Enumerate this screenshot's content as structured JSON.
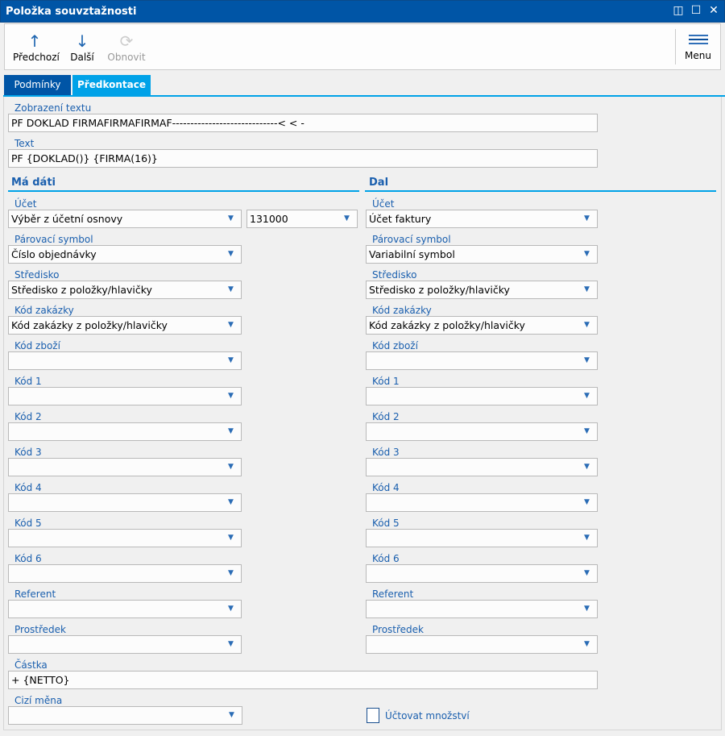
{
  "window": {
    "title": "Položka souvztažnosti"
  },
  "toolbar": {
    "prev": "Předchozí",
    "next": "Další",
    "refresh": "Obnovit",
    "menu": "Menu"
  },
  "tabs": [
    {
      "label": "Podmínky",
      "active": false
    },
    {
      "label": "Předkontace",
      "active": true
    }
  ],
  "fields": {
    "display_text": {
      "label": "Zobrazení textu",
      "value": "PF DOKLAD FIRMAFIRMAFIRMAF-----------------------------< < -"
    },
    "text": {
      "label": "Text",
      "value": "PF {DOKLAD()} {FIRMA(16)}"
    },
    "amount": {
      "label": "Částka",
      "value": "+ {NETTO}"
    },
    "foreign_currency": {
      "label": "Cizí měna",
      "value": ""
    },
    "count_quantity": {
      "label": "Účtovat množství",
      "checked": false
    }
  },
  "debit": {
    "title": "Má dáti",
    "account_number": "131000",
    "rows": [
      {
        "label": "Účet",
        "value": "Výběr z účetní osnovy"
      },
      {
        "label": "Párovací symbol",
        "value": "Číslo objednávky"
      },
      {
        "label": "Středisko",
        "value": "Středisko z položky/hlavičky"
      },
      {
        "label": "Kód zakázky",
        "value": "Kód zakázky z položky/hlavičky"
      },
      {
        "label": "Kód zboží",
        "value": ""
      },
      {
        "label": "Kód 1",
        "value": ""
      },
      {
        "label": "Kód 2",
        "value": ""
      },
      {
        "label": "Kód 3",
        "value": ""
      },
      {
        "label": "Kód 4",
        "value": ""
      },
      {
        "label": "Kód 5",
        "value": ""
      },
      {
        "label": "Kód 6",
        "value": ""
      },
      {
        "label": "Referent",
        "value": ""
      },
      {
        "label": "Prostředek",
        "value": ""
      }
    ]
  },
  "credit": {
    "title": "Dal",
    "rows": [
      {
        "label": "Účet",
        "value": "Účet faktury"
      },
      {
        "label": "Párovací symbol",
        "value": "Variabilní symbol"
      },
      {
        "label": "Středisko",
        "value": "Středisko z položky/hlavičky"
      },
      {
        "label": "Kód zakázky",
        "value": "Kód zakázky z položky/hlavičky"
      },
      {
        "label": "Kód zboží",
        "value": ""
      },
      {
        "label": "Kód 1",
        "value": ""
      },
      {
        "label": "Kód 2",
        "value": ""
      },
      {
        "label": "Kód 3",
        "value": ""
      },
      {
        "label": "Kód 4",
        "value": ""
      },
      {
        "label": "Kód 5",
        "value": ""
      },
      {
        "label": "Kód 6",
        "value": ""
      },
      {
        "label": "Referent",
        "value": ""
      },
      {
        "label": "Prostředek",
        "value": ""
      }
    ]
  },
  "colors": {
    "titlebar": "#0055a6",
    "tab_active": "#00a2e8",
    "tab_inactive": "#0055a6",
    "label": "#1a5fae"
  }
}
